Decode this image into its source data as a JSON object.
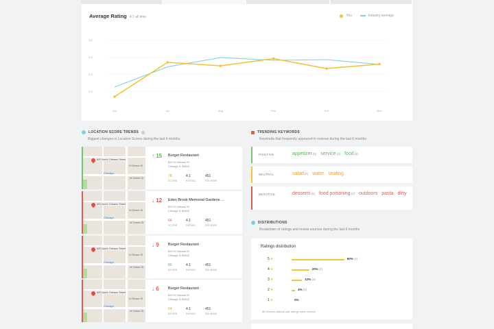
{
  "average_rating": {
    "title": "Average Rating",
    "subtitle": "4.7 all time",
    "legend": {
      "you": "You",
      "industry": "Industry average"
    }
  },
  "chart_data": {
    "type": "line",
    "title": "Average Rating",
    "x": [
      "Jun",
      "Jul",
      "Aug",
      "Sep",
      "Oct",
      "Nov"
    ],
    "y_ticks": [
      "3.5",
      "3.0",
      "2.5",
      "2.0"
    ],
    "ylim": [
      1.75,
      3.75
    ],
    "series": [
      {
        "name": "You",
        "values": [
          1.85,
          2.85,
          2.75,
          2.96,
          2.67,
          2.8
        ],
        "color": "#f5c233",
        "markers": true
      },
      {
        "name": "Industry average",
        "values": [
          2.13,
          2.72,
          2.99,
          2.91,
          2.93,
          2.79
        ],
        "color": "#7fcdea",
        "markers": false
      }
    ],
    "grid": true,
    "legend_position": "top-right"
  },
  "location_trends": {
    "title": "LOCATION SCORE TRENDS",
    "subtitle": "Biggest changes in Location Scores during the last 6 months",
    "score_label": "SCORE",
    "rating_label": "RATING",
    "reviews_label": "REVIEWS",
    "map": {
      "pin_label": "820 North Orleans Street",
      "city": "Chicago",
      "street_w": "W Ontario St",
      "street_n": "N Orleans St"
    },
    "items": [
      {
        "delta": "↑ 15",
        "direction": "up",
        "name": "Burger Restaurant",
        "addr1": "820 N Orleans St",
        "addr2": "Chicago IL 60610",
        "score": "78",
        "score_color": "orange",
        "rating": "4.1",
        "reviews": "451"
      },
      {
        "delta": "↓ 12",
        "direction": "down",
        "name": "Eden Brook Memorial Gardens ...",
        "addr1": "820 N Orleans St",
        "addr2": "Chicago IL 60610",
        "score": "64",
        "score_color": "red",
        "rating": "4.1",
        "reviews": "451"
      },
      {
        "delta": "↓ 9",
        "direction": "down",
        "name": "Burger Restaurant",
        "addr1": "820 N Orleans St",
        "addr2": "Chicago IL 60610",
        "score": "80",
        "score_color": "green",
        "rating": "4.1",
        "reviews": "451"
      },
      {
        "delta": "↓ 6",
        "direction": "down",
        "name": "Burger Restaurant",
        "addr1": "820 N Orleans St",
        "addr2": "Chicago IL 60610",
        "score": "64",
        "score_color": "orange",
        "rating": "4.1",
        "reviews": "451"
      }
    ]
  },
  "keywords": {
    "title": "TRENDING KEYWORDS",
    "subtitle": "Keywords that frequently appeared in reviews during the last 6 months",
    "rows": [
      {
        "label": "POSITIVE",
        "items": [
          {
            "word": "appetizer",
            "count": "(6)"
          },
          {
            "word": "service",
            "count": "(4)"
          },
          {
            "word": "food",
            "count": "(2)"
          }
        ]
      },
      {
        "label": "NEUTRAL",
        "items": [
          {
            "word": "salad",
            "count": "(4)"
          },
          {
            "word": "water",
            "count": ""
          },
          {
            "word": "seating",
            "count": ""
          }
        ]
      },
      {
        "label": "NEGATIVE",
        "items": [
          {
            "word": "desserts",
            "count": "(6)"
          },
          {
            "word": "food poisoning",
            "count": "(4)"
          },
          {
            "word": "outdoors",
            "count": ""
          },
          {
            "word": "pasta",
            "count": ""
          },
          {
            "word": "dirty",
            "count": ""
          }
        ]
      }
    ]
  },
  "distributions": {
    "title": "DISTRIBUTIONS",
    "subtitle": "Breakdown of ratings and review sources during the last 6 months",
    "card_title": "Ratings distribution",
    "rows": [
      {
        "star": "5",
        "pct": "60%",
        "count": "(4)",
        "fraction": 0.6
      },
      {
        "star": "4",
        "pct": "20%",
        "count": "(4)",
        "fraction": 0.2
      },
      {
        "star": "3",
        "pct": "12%",
        "count": "(4)",
        "fraction": 0.12
      },
      {
        "star": "2",
        "pct": "4%",
        "count": "(4)",
        "fraction": 0.04
      },
      {
        "star": "1",
        "pct": "0%",
        "count": "",
        "fraction": 0
      }
    ],
    "note": "68 reviews without star ratings were omitted"
  }
}
